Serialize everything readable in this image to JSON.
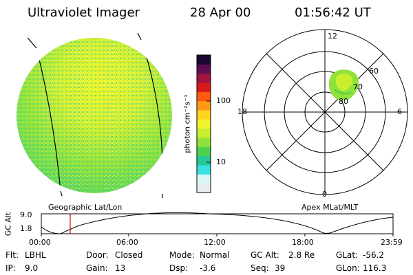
{
  "header": {
    "instrument": "Ultraviolet Imager",
    "date": "28 Apr 00",
    "time": "01:56:42 UT"
  },
  "colorbar": {
    "unit_label": "photon cm⁻²s⁻¹",
    "tick_100": "100",
    "tick_10": "10",
    "colors": [
      "#e9eef2",
      "#d7f7f7",
      "#39e0e0",
      "#27c996",
      "#4dd14d",
      "#8fe23b",
      "#c8ef2f",
      "#eff52a",
      "#ffd21f",
      "#ff9a14",
      "#ff5a0f",
      "#d61a1a",
      "#a0143f",
      "#5b0f50",
      "#1a0830"
    ]
  },
  "polar_plot": {
    "labels": {
      "top": "12",
      "left": "18",
      "right": "6",
      "bottom": "0",
      "lat60": "60",
      "lat70": "70",
      "lat80": "80"
    }
  },
  "panel_labels": {
    "left": "Geographic Lat/Lon",
    "right": "Apex MLat/MLT"
  },
  "timeline": {
    "axis_title": "GC Alt",
    "y_top": "9.0",
    "y_bottom": "1.8",
    "x_ticks": [
      "00:00",
      "06:00",
      "12:00",
      "18:00",
      "23:59"
    ],
    "marker_color": "#cc0000"
  },
  "footer": {
    "flt_label": "Flt:",
    "flt_value": "LBHL",
    "ip_label": "IP:",
    "ip_value": "9.0",
    "door_label": "Door:",
    "door_value": "Closed",
    "gain_label": "Gain:",
    "gain_value": "13",
    "mode_label": "Mode:",
    "mode_value": "Normal",
    "dsp_label": "Dsp:",
    "dsp_value": "-3.6",
    "gcalt_label": "GC Alt:",
    "gcalt_value": "2.8 Re",
    "seq_label": "Seq:",
    "seq_value": "39",
    "glat_label": "GLat:",
    "glat_value": "-56.2",
    "glon_label": "GLon:",
    "glon_value": "116.3"
  }
}
